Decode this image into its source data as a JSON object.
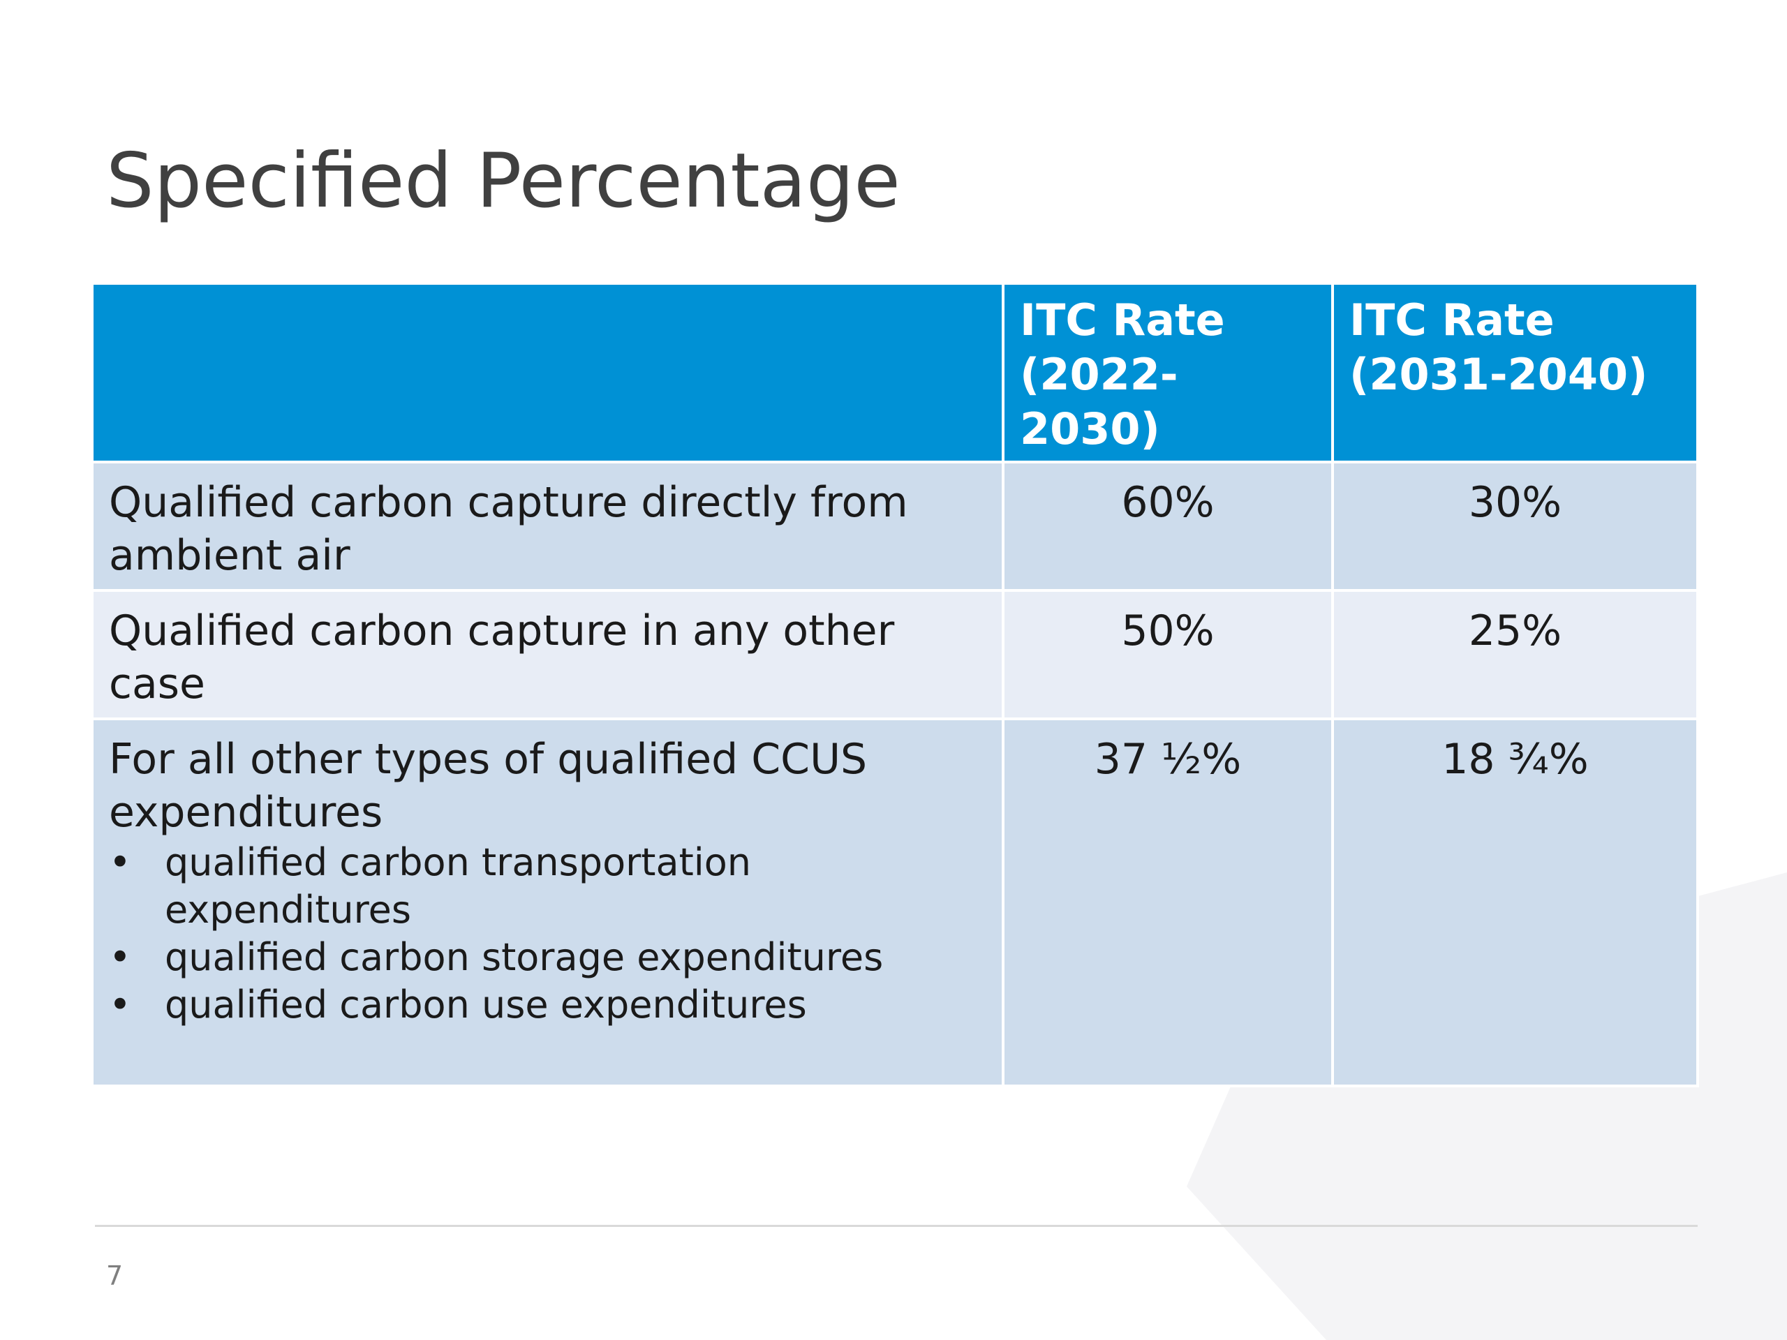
{
  "slide": {
    "title": "Specified Percentage",
    "page_number": "7"
  },
  "table": {
    "headers": [
      "",
      "ITC Rate (2022-2030)",
      "ITC Rate (2031-2040)"
    ],
    "rows": [
      {
        "label": "Qualified carbon capture directly from ambient air",
        "rate_2022_2030": "60%",
        "rate_2031_2040": "30%"
      },
      {
        "label": "Qualified carbon capture in any other case",
        "rate_2022_2030": "50%",
        "rate_2031_2040": "25%"
      },
      {
        "label": "For all other types of qualified CCUS expenditures",
        "bullets": [
          "qualified carbon transportation expenditures",
          "qualified carbon storage expenditures",
          "qualified carbon use expenditures"
        ],
        "rate_2022_2030": "37 ½%",
        "rate_2031_2040": "18 ¾%"
      }
    ]
  },
  "colors": {
    "header_bg": "#0091d5",
    "row_odd_bg": "#cddcec",
    "row_even_bg": "#e8edf6",
    "title_color": "#404040"
  }
}
